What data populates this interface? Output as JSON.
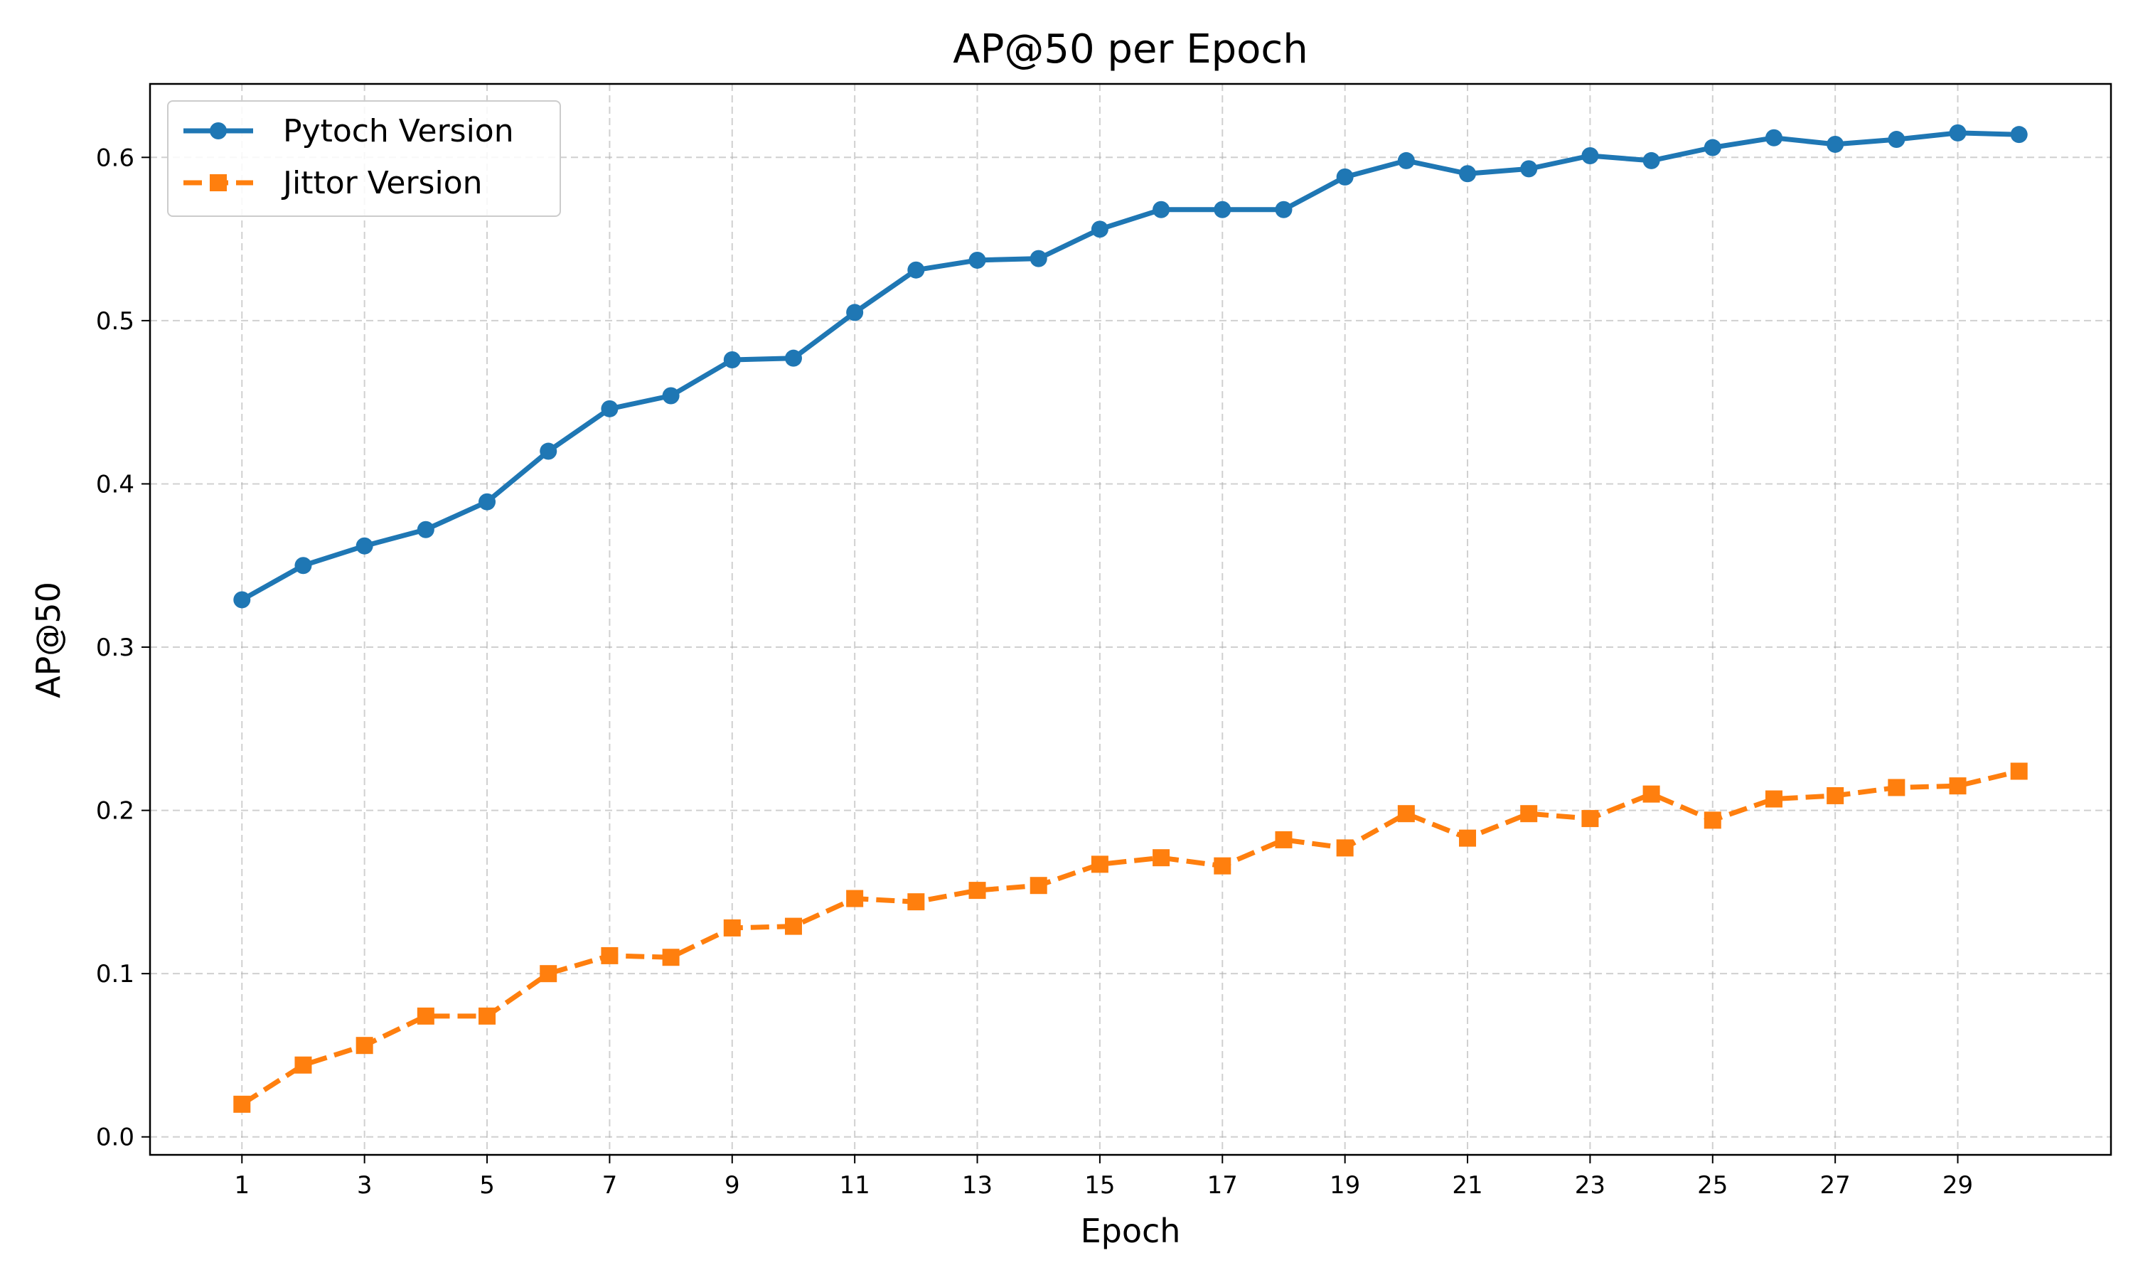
{
  "chart_data": {
    "type": "line",
    "title": "AP@50 per Epoch",
    "xlabel": "Epoch",
    "ylabel": "AP@50",
    "xlim": [
      -0.5,
      31.5
    ],
    "ylim": [
      -0.011,
      0.645
    ],
    "xticks": [
      1,
      3,
      5,
      7,
      9,
      11,
      13,
      15,
      17,
      19,
      21,
      23,
      25,
      27,
      29
    ],
    "yticks": [
      0.0,
      0.1,
      0.2,
      0.3,
      0.4,
      0.5,
      0.6
    ],
    "ytick_labels": [
      "0.0",
      "0.1",
      "0.2",
      "0.3",
      "0.4",
      "0.5",
      "0.6"
    ],
    "grid": true,
    "legend_position": "top-left",
    "x": [
      1,
      2,
      3,
      4,
      5,
      6,
      7,
      8,
      9,
      10,
      11,
      12,
      13,
      14,
      15,
      16,
      17,
      18,
      19,
      20,
      21,
      22,
      23,
      24,
      25,
      26,
      27,
      28,
      29,
      30
    ],
    "series": [
      {
        "name": "Pytoch Version",
        "color": "#1f77b4",
        "marker": "circle",
        "linestyle": "solid",
        "values": [
          0.329,
          0.35,
          0.362,
          0.372,
          0.389,
          0.42,
          0.446,
          0.454,
          0.476,
          0.477,
          0.505,
          0.531,
          0.537,
          0.538,
          0.556,
          0.568,
          0.568,
          0.568,
          0.588,
          0.598,
          0.59,
          0.593,
          0.601,
          0.598,
          0.606,
          0.612,
          0.608,
          0.611,
          0.615,
          0.614
        ]
      },
      {
        "name": "Jittor Version",
        "color": "#ff7f0e",
        "marker": "square",
        "linestyle": "dashed",
        "values": [
          0.02,
          0.044,
          0.056,
          0.074,
          0.074,
          0.1,
          0.111,
          0.11,
          0.128,
          0.129,
          0.146,
          0.144,
          0.151,
          0.154,
          0.167,
          0.171,
          0.166,
          0.182,
          0.177,
          0.198,
          0.183,
          0.198,
          0.195,
          0.21,
          0.194,
          0.207,
          0.209,
          0.214,
          0.215,
          0.224
        ]
      }
    ]
  }
}
